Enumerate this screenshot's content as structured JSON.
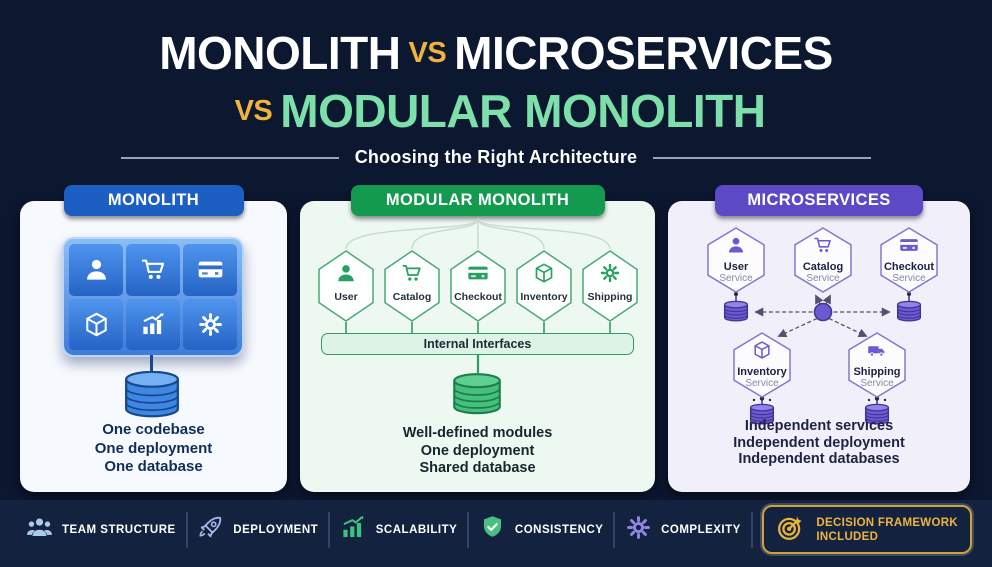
{
  "title": {
    "l1_word1": "MONOLITH",
    "l1_vs": "VS",
    "l1_word2": "MICROSERVICES",
    "l2_vs": "VS",
    "l2_word1": "MODULAR MONOLITH",
    "subtitle": "Choosing the Right Architecture"
  },
  "colors": {
    "background": "#0c1730",
    "accent_yellow": "#f0b43e",
    "accent_mint": "#7ddfa9",
    "monolith_blue": "#1d5ec2",
    "modular_green": "#149a4e",
    "microservices_purple": "#5b49c6"
  },
  "monolith": {
    "header": "MONOLITH",
    "modules": [
      "user-icon",
      "cart-icon",
      "card-icon",
      "box-icon",
      "chart-icon",
      "gear-icon"
    ],
    "caption": [
      "One codebase",
      "One deployment",
      "One database"
    ]
  },
  "modular": {
    "header": "MODULAR MONOLITH",
    "modules": [
      {
        "icon": "user-icon",
        "label": "User"
      },
      {
        "icon": "cart-icon",
        "label": "Catalog"
      },
      {
        "icon": "card-icon",
        "label": "Checkout"
      },
      {
        "icon": "box-icon",
        "label": "Inventory"
      },
      {
        "icon": "gear-icon",
        "label": "Shipping"
      }
    ],
    "bus_label": "Internal Interfaces",
    "caption": [
      "Well-defined modules",
      "One deployment",
      "Shared database"
    ]
  },
  "microservices": {
    "header": "MICROSERVICES",
    "services": [
      {
        "icon": "user-icon",
        "name": "User",
        "sub": "Service"
      },
      {
        "icon": "cart-icon",
        "name": "Catalog",
        "sub": "Service"
      },
      {
        "icon": "card-icon",
        "name": "Checkout",
        "sub": "Service"
      },
      {
        "icon": "box-icon",
        "name": "Inventory",
        "sub": "Service"
      },
      {
        "icon": "truck-icon",
        "name": "Shipping",
        "sub": "Service"
      }
    ],
    "caption": [
      "Independent services",
      "Independent deployment",
      "Independent databases"
    ]
  },
  "footer": {
    "items": [
      {
        "icon": "team-icon",
        "label": "TEAM STRUCTURE",
        "color": "#a9c9ee"
      },
      {
        "icon": "rocket-icon",
        "label": "DEPLOYMENT",
        "color": "#aab6ec"
      },
      {
        "icon": "growth-chart-icon",
        "label": "SCALABILITY",
        "color": "#3ec07e"
      },
      {
        "icon": "shield-check-icon",
        "label": "CONSISTENCY",
        "color": "#4abf82"
      },
      {
        "icon": "gear-icon",
        "label": "COMPLEXITY",
        "color": "#9188e4"
      }
    ],
    "badge": {
      "icon": "target-icon",
      "lines": [
        "DECISION FRAMEWORK",
        "INCLUDED"
      ],
      "color": "#f0b43e"
    }
  }
}
